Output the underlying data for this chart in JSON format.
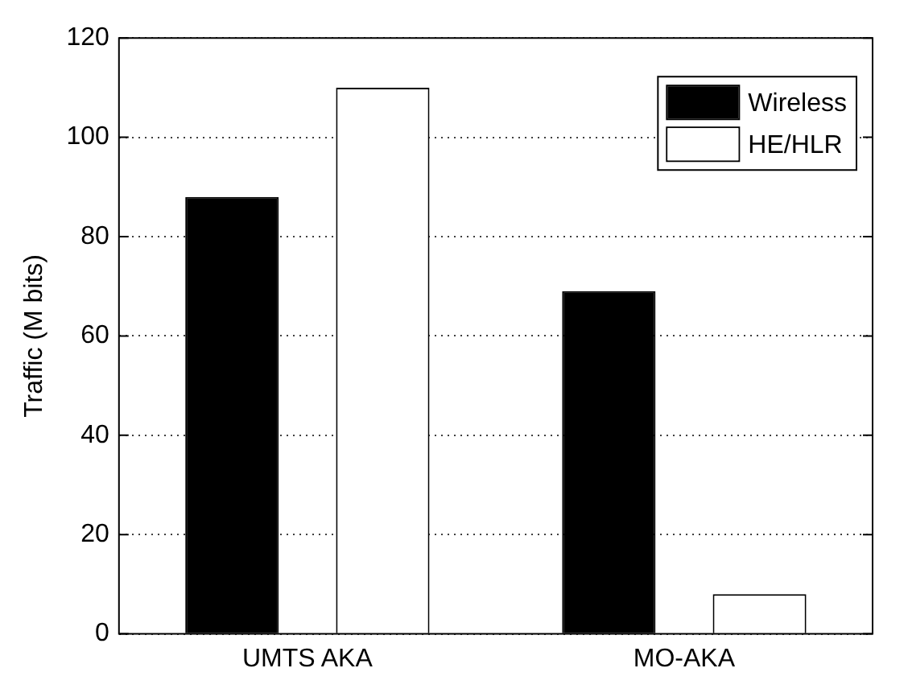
{
  "chart_data": {
    "type": "bar",
    "ylabel": "Traffic (M bits)",
    "categories": [
      "UMTS AKA",
      "MO-AKA"
    ],
    "series": [
      {
        "name": "Wireless",
        "color": "#000000",
        "values": [
          88,
          69
        ]
      },
      {
        "name": "HE/HLR",
        "color": "#ffffff",
        "values": [
          110,
          8
        ]
      }
    ],
    "ylim": [
      0,
      120
    ],
    "yticks": [
      0,
      20,
      40,
      60,
      80,
      100,
      120
    ],
    "grid": "y",
    "legend": "top right"
  }
}
